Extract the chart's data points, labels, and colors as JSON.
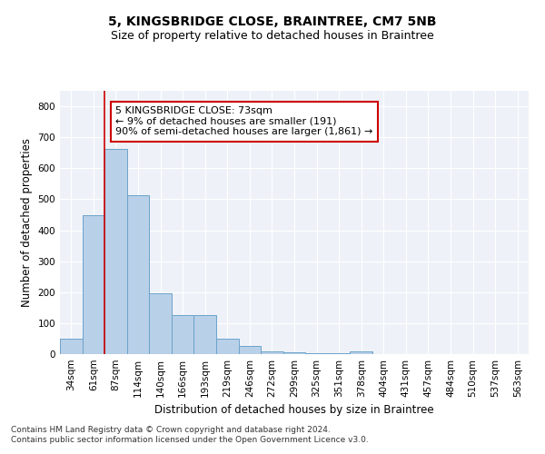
{
  "title": "5, KINGSBRIDGE CLOSE, BRAINTREE, CM7 5NB",
  "subtitle": "Size of property relative to detached houses in Braintree",
  "xlabel": "Distribution of detached houses by size in Braintree",
  "ylabel": "Number of detached properties",
  "bar_labels": [
    "34sqm",
    "61sqm",
    "87sqm",
    "114sqm",
    "140sqm",
    "166sqm",
    "193sqm",
    "219sqm",
    "246sqm",
    "272sqm",
    "299sqm",
    "325sqm",
    "351sqm",
    "378sqm",
    "404sqm",
    "431sqm",
    "457sqm",
    "484sqm",
    "510sqm",
    "537sqm",
    "563sqm"
  ],
  "bar_values": [
    50,
    447,
    663,
    514,
    196,
    125,
    125,
    50,
    26,
    10,
    5,
    3,
    3,
    8,
    0,
    0,
    0,
    0,
    0,
    0,
    0
  ],
  "bar_color": "#b8d0e8",
  "bar_edge_color": "#6ba3cb",
  "vline_x": 1.5,
  "vline_color": "#cc0000",
  "annotation_text": "5 KINGSBRIDGE CLOSE: 73sqm\n← 9% of detached houses are smaller (191)\n90% of semi-detached houses are larger (1,861) →",
  "annotation_box_color": "#ffffff",
  "annotation_box_edge_color": "#cc0000",
  "ylim": [
    0,
    850
  ],
  "yticks": [
    0,
    100,
    200,
    300,
    400,
    500,
    600,
    700,
    800
  ],
  "footer_line1": "Contains HM Land Registry data © Crown copyright and database right 2024.",
  "footer_line2": "Contains public sector information licensed under the Open Government Licence v3.0.",
  "background_color": "#eef2f8",
  "grid_color": "#ffffff",
  "title_fontsize": 10,
  "subtitle_fontsize": 9,
  "axis_label_fontsize": 8.5,
  "tick_fontsize": 7.5,
  "annotation_fontsize": 8,
  "footer_fontsize": 6.5
}
